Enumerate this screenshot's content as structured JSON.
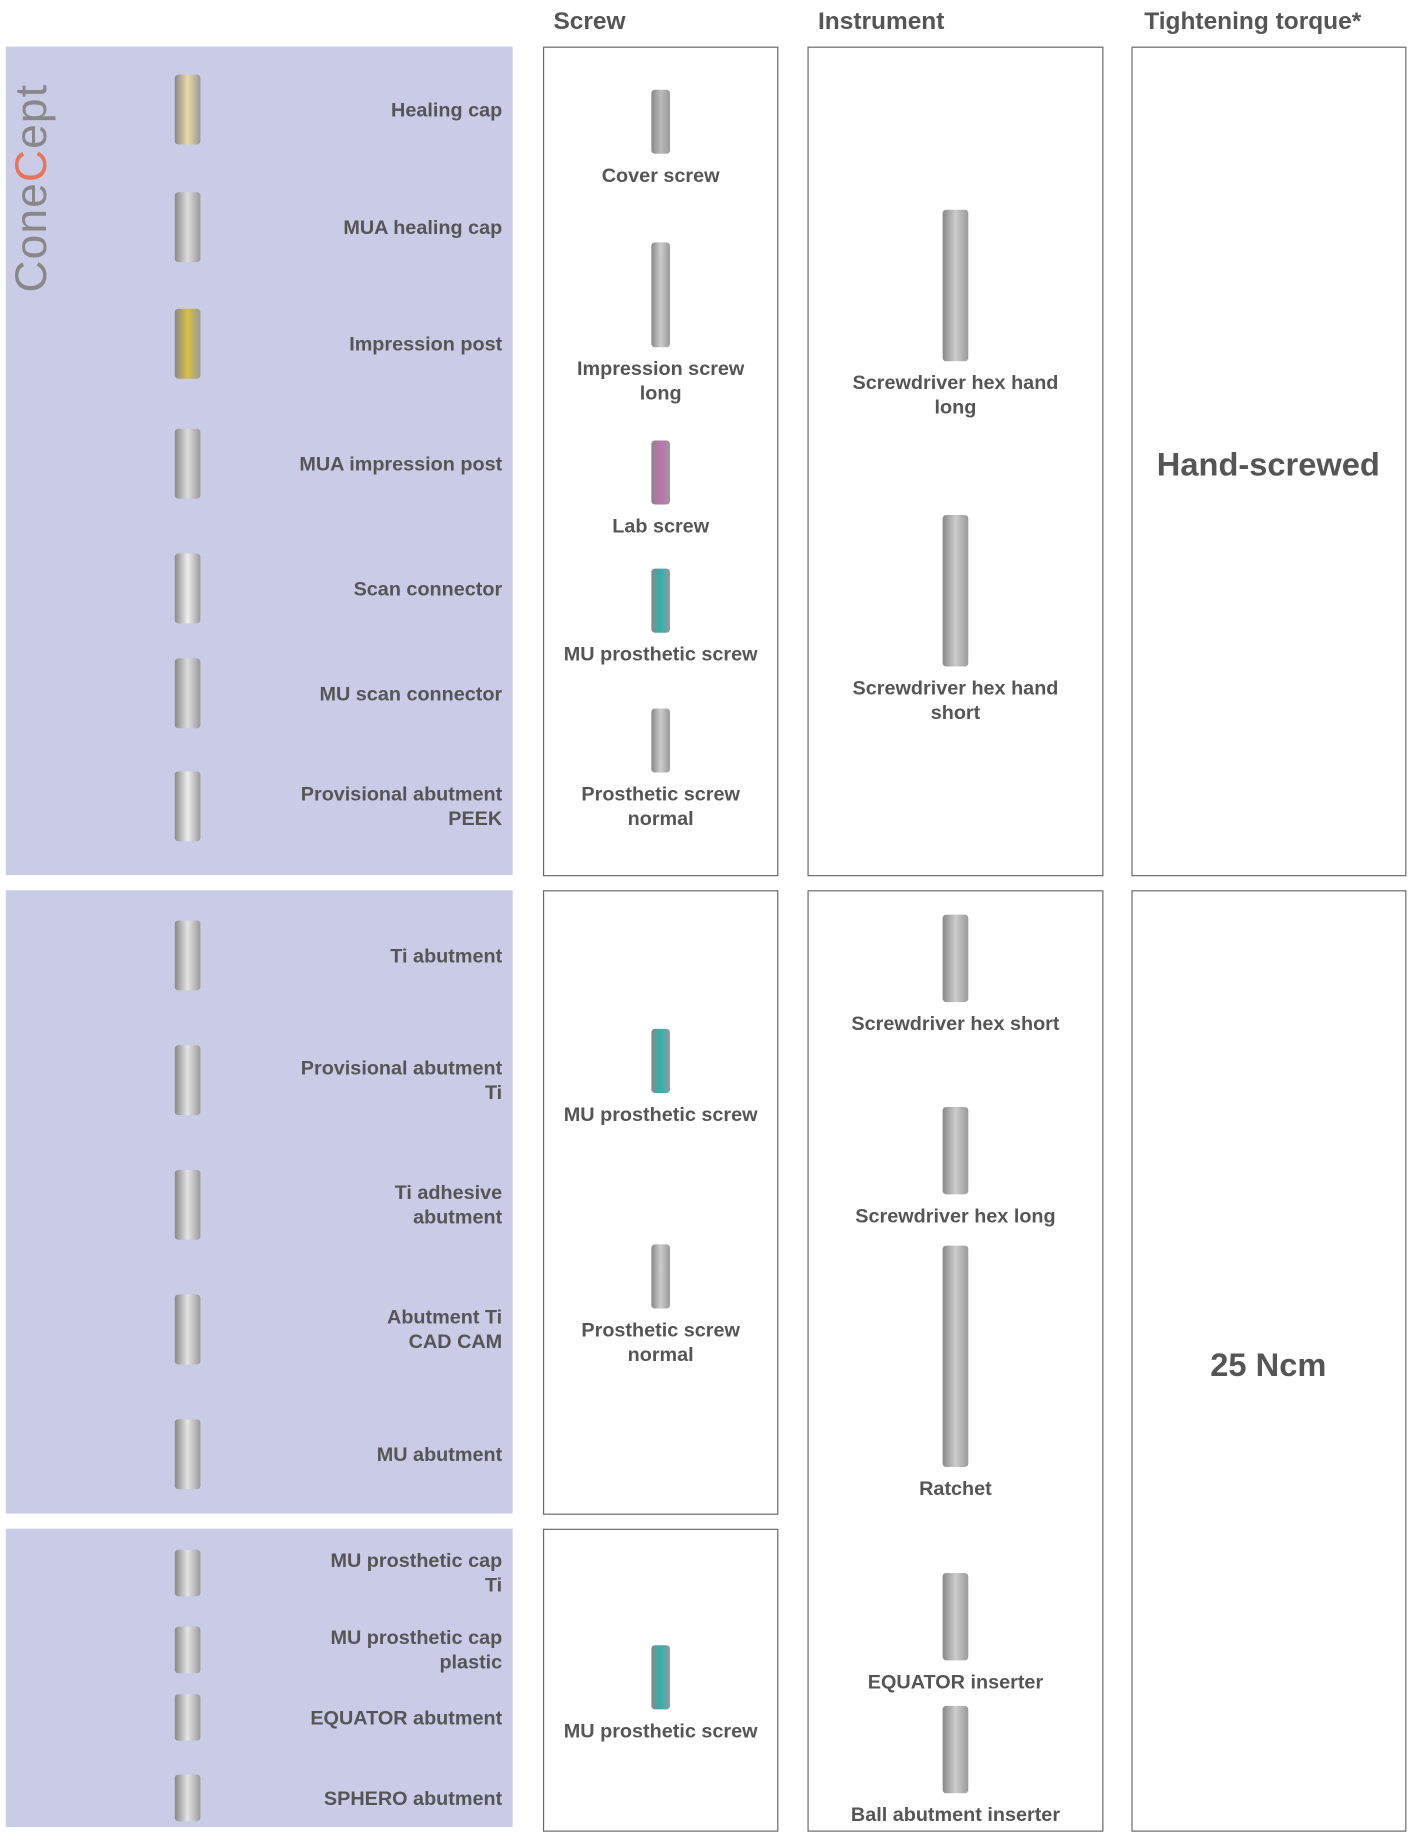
{
  "header": {
    "columns": [
      "Screw",
      "Instrument",
      "Tightening torque*"
    ]
  },
  "brand": [
    "Cone",
    "C",
    "ept"
  ],
  "sections": [
    {
      "items": [
        [
          "Healing cap"
        ],
        [
          "MUA healing cap"
        ],
        [
          "Impression post"
        ],
        [
          "MUA impression post"
        ],
        [
          "Scan connector"
        ],
        [
          "MU scan connector"
        ],
        [
          "Provisional abutment",
          "PEEK"
        ]
      ],
      "screws": [
        [
          "Cover screw"
        ],
        [
          "Impression screw",
          "long"
        ],
        [
          "Lab screw"
        ],
        [
          "MU prosthetic screw"
        ],
        [
          "Prosthetic screw",
          "normal"
        ]
      ]
    },
    {
      "items": [
        [
          "Ti abutment"
        ],
        [
          "Provisional abutment",
          "Ti"
        ],
        [
          "Ti adhesive",
          "abutment"
        ],
        [
          "Abutment Ti",
          "CAD CAM"
        ],
        [
          "MU abutment"
        ]
      ],
      "screws": [
        [
          "MU prosthetic screw"
        ],
        [
          "Prosthetic screw",
          "normal"
        ]
      ]
    },
    {
      "items": [
        [
          "MU prosthetic cap",
          "Ti"
        ],
        [
          "MU prosthetic cap",
          "plastic"
        ],
        [
          "EQUATOR abutment"
        ],
        [
          "SPHERO abutment"
        ]
      ],
      "screws": [
        [
          "MU prosthetic screw"
        ]
      ]
    }
  ],
  "instrument_groups": [
    {
      "instruments": [
        [
          "Screwdriver hex hand",
          "long"
        ],
        [
          "Screwdriver hex hand",
          "short"
        ]
      ],
      "torque": "Hand-screwed"
    },
    {
      "instruments": [
        [
          "Screwdriver hex short"
        ],
        [
          "Screwdriver hex long"
        ],
        [
          "Ratchet"
        ],
        [
          "EQUATOR inserter"
        ],
        [
          "Ball abutment inserter"
        ]
      ],
      "torque": "25 Ncm"
    }
  ]
}
